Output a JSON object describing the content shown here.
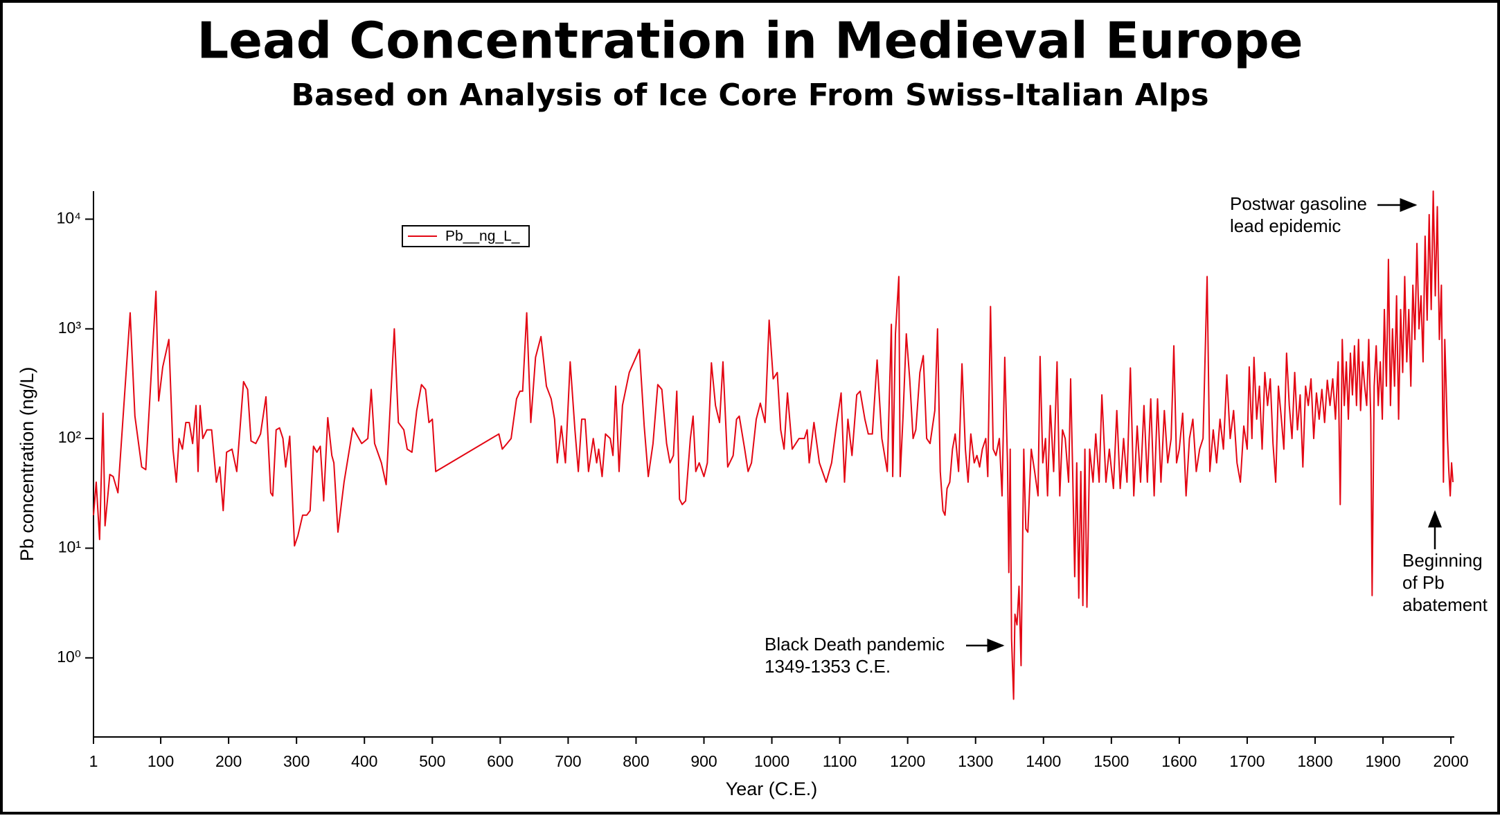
{
  "chart_data": {
    "type": "line",
    "title": "Lead Concentration in Medieval Europe",
    "subtitle": "Based on Analysis of Ice Core From Swiss-Italian Alps",
    "x_label": "Year (C.E.)",
    "y_label": "Pb concentration (ng/L)",
    "log_y": true,
    "grid": false,
    "legend": "upper left",
    "xlim": [
      1,
      2005
    ],
    "xticks": [
      1,
      100,
      200,
      300,
      400,
      500,
      600,
      700,
      800,
      900,
      1000,
      1100,
      1200,
      1300,
      1400,
      1500,
      1600,
      1700,
      1800,
      1900,
      2000
    ],
    "ylim": [
      0.19,
      18000
    ],
    "yticks": [
      {
        "value": 1,
        "label": "10⁰"
      },
      {
        "value": 10,
        "label": "10¹"
      },
      {
        "value": 100,
        "label": "10²"
      },
      {
        "value": 1000,
        "label": "10³"
      },
      {
        "value": 10000,
        "label": "10⁴"
      }
    ],
    "annotations": [
      {
        "lines": [
          "Postwar gasoline",
          "lead epidemic"
        ]
      },
      {
        "lines": [
          "Black Death pandemic",
          "1349-1353 C.E."
        ]
      },
      {
        "lines": [
          "Beginning",
          "of Pb",
          "abatement"
        ]
      }
    ],
    "x": [
      1,
      5,
      10,
      15,
      18,
      25,
      30,
      37,
      55,
      62,
      72,
      78,
      93,
      97,
      103,
      112,
      118,
      123,
      127,
      132,
      137,
      142,
      147,
      152,
      155,
      158,
      162,
      168,
      175,
      182,
      187,
      192,
      197,
      205,
      212,
      222,
      228,
      233,
      240,
      247,
      255,
      262,
      265,
      270,
      275,
      280,
      284,
      290,
      297,
      302,
      309,
      315,
      320,
      325,
      330,
      335,
      340,
      346,
      352,
      355,
      361,
      370,
      383,
      396,
      405,
      410,
      415,
      425,
      432,
      444,
      450,
      458,
      463,
      470,
      477,
      484,
      490,
      495,
      500,
      505,
      598,
      603,
      610,
      616,
      624,
      629,
      633,
      639,
      645,
      652,
      660,
      668,
      675,
      680,
      684,
      690,
      696,
      703,
      710,
      715,
      720,
      725,
      730,
      737,
      742,
      745,
      750,
      755,
      762,
      766,
      770,
      775,
      780,
      790,
      805,
      812,
      818,
      825,
      832,
      838,
      845,
      850,
      855,
      860,
      864,
      868,
      873,
      880,
      884,
      888,
      893,
      900,
      905,
      911,
      917,
      923,
      928,
      935,
      943,
      948,
      952,
      960,
      965,
      970,
      977,
      983,
      990,
      996,
      1002,
      1008,
      1013,
      1018,
      1023,
      1030,
      1040,
      1048,
      1052,
      1055,
      1062,
      1070,
      1080,
      1088,
      1095,
      1102,
      1107,
      1112,
      1118,
      1125,
      1130,
      1137,
      1142,
      1148,
      1155,
      1162,
      1170,
      1176,
      1178,
      1182,
      1187,
      1189,
      1193,
      1198,
      1203,
      1208,
      1212,
      1218,
      1223,
      1228,
      1233,
      1240,
      1244,
      1248,
      1252,
      1255,
      1258,
      1262,
      1266,
      1270,
      1275,
      1280,
      1285,
      1289,
      1293,
      1298,
      1302,
      1306,
      1310,
      1315,
      1318,
      1322,
      1326,
      1330,
      1335,
      1339,
      1343,
      1347,
      1349,
      1351,
      1353,
      1356,
      1358,
      1361,
      1364,
      1367,
      1371,
      1374,
      1377,
      1382,
      1387,
      1392,
      1395,
      1399,
      1403,
      1406,
      1410,
      1415,
      1420,
      1424,
      1428,
      1432,
      1437,
      1440,
      1443,
      1446,
      1449,
      1452,
      1455,
      1458,
      1461,
      1464,
      1468,
      1473,
      1477,
      1482,
      1486,
      1492,
      1497,
      1503,
      1508,
      1513,
      1518,
      1523,
      1528,
      1533,
      1538,
      1543,
      1548,
      1553,
      1558,
      1563,
      1568,
      1573,
      1578,
      1583,
      1588,
      1592,
      1596,
      1600,
      1605,
      1610,
      1615,
      1620,
      1625,
      1630,
      1635,
      1641,
      1645,
      1650,
      1655,
      1660,
      1665,
      1670,
      1675,
      1680,
      1685,
      1690,
      1695,
      1700,
      1703,
      1707,
      1710,
      1714,
      1718,
      1722,
      1726,
      1730,
      1734,
      1738,
      1742,
      1746,
      1750,
      1754,
      1758,
      1762,
      1766,
      1770,
      1774,
      1778,
      1782,
      1786,
      1790,
      1794,
      1798,
      1802,
      1806,
      1810,
      1814,
      1818,
      1822,
      1826,
      1830,
      1834,
      1837,
      1840,
      1843,
      1846,
      1849,
      1852,
      1855,
      1858,
      1861,
      1864,
      1867,
      1870,
      1873,
      1876,
      1879,
      1882,
      1884,
      1887,
      1890,
      1893,
      1896,
      1899,
      1902,
      1905,
      1908,
      1911,
      1914,
      1917,
      1920,
      1923,
      1926,
      1929,
      1932,
      1935,
      1938,
      1941,
      1944,
      1947,
      1950,
      1953,
      1956,
      1959,
      1962,
      1965,
      1968,
      1971,
      1974,
      1977,
      1980,
      1983,
      1986,
      1989,
      1991,
      1993,
      1995,
      1997,
      1999,
      2001,
      2003
    ],
    "series": [
      {
        "name": "Pb__ng_L_",
        "color": "#e30613",
        "values": [
          20,
          40,
          12,
          170,
          16,
          47,
          45,
          32,
          1400,
          160,
          55,
          52,
          2200,
          220,
          450,
          800,
          80,
          40,
          100,
          80,
          140,
          140,
          90,
          200,
          50,
          200,
          100,
          120,
          120,
          40,
          55,
          22,
          75,
          80,
          50,
          330,
          280,
          95,
          90,
          110,
          240,
          32,
          30,
          120,
          125,
          100,
          55,
          105,
          10.5,
          13,
          20,
          20,
          22,
          85,
          75,
          85,
          27,
          155,
          70,
          60,
          14,
          40,
          125,
          90,
          100,
          280,
          90,
          60,
          38,
          1000,
          140,
          120,
          80,
          75,
          180,
          310,
          280,
          140,
          150,
          50,
          110,
          80,
          90,
          100,
          230,
          270,
          270,
          1400,
          140,
          550,
          850,
          300,
          230,
          150,
          60,
          130,
          60,
          500,
          120,
          50,
          150,
          150,
          50,
          100,
          60,
          80,
          45,
          110,
          100,
          70,
          300,
          50,
          200,
          400,
          650,
          130,
          45,
          90,
          310,
          280,
          90,
          60,
          70,
          270,
          28,
          25,
          27,
          100,
          160,
          50,
          60,
          45,
          60,
          490,
          200,
          140,
          500,
          55,
          70,
          150,
          160,
          80,
          50,
          60,
          150,
          210,
          140,
          1200,
          350,
          400,
          120,
          80,
          260,
          80,
          100,
          100,
          120,
          60,
          140,
          60,
          40,
          60,
          130,
          260,
          40,
          150,
          70,
          250,
          270,
          150,
          110,
          110,
          520,
          100,
          50,
          1100,
          45,
          900,
          3000,
          45,
          150,
          900,
          350,
          100,
          120,
          400,
          570,
          100,
          90,
          180,
          1000,
          50,
          22,
          20,
          35,
          40,
          80,
          110,
          50,
          480,
          80,
          40,
          110,
          60,
          70,
          55,
          80,
          100,
          45,
          1600,
          80,
          70,
          100,
          30,
          550,
          60,
          6,
          80,
          1.5,
          0.42,
          2.5,
          2,
          4.5,
          0.85,
          80,
          15,
          14,
          80,
          50,
          30,
          560,
          60,
          100,
          30,
          200,
          50,
          500,
          30,
          120,
          100,
          40,
          350,
          50,
          5.5,
          60,
          3.5,
          50,
          3,
          80,
          2.9,
          80,
          40,
          110,
          40,
          250,
          40,
          80,
          35,
          180,
          35,
          100,
          40,
          440,
          30,
          130,
          40,
          200,
          40,
          230,
          30,
          230,
          40,
          180,
          60,
          100,
          700,
          60,
          80,
          170,
          30,
          100,
          150,
          50,
          80,
          100,
          3000,
          50,
          120,
          60,
          150,
          80,
          380,
          100,
          180,
          60,
          40,
          130,
          80,
          450,
          100,
          550,
          150,
          300,
          80,
          400,
          200,
          350,
          90,
          40,
          300,
          160,
          80,
          600,
          200,
          100,
          400,
          120,
          250,
          55,
          300,
          200,
          350,
          100,
          260,
          150,
          280,
          140,
          340,
          200,
          350,
          150,
          500,
          25,
          800,
          200,
          500,
          150,
          600,
          250,
          700,
          200,
          800,
          180,
          500,
          300,
          200,
          800,
          150,
          3.7,
          300,
          700,
          200,
          500,
          150,
          1500,
          300,
          4300,
          200,
          1000,
          300,
          2000,
          150,
          1500,
          400,
          3000,
          500,
          1500,
          300,
          2500,
          800,
          6000,
          1000,
          2000,
          500,
          7000,
          1200,
          11000,
          1500,
          18000,
          2000,
          13000,
          800,
          2500,
          40,
          800,
          300,
          100,
          50,
          30,
          60,
          40
        ]
      }
    ]
  }
}
